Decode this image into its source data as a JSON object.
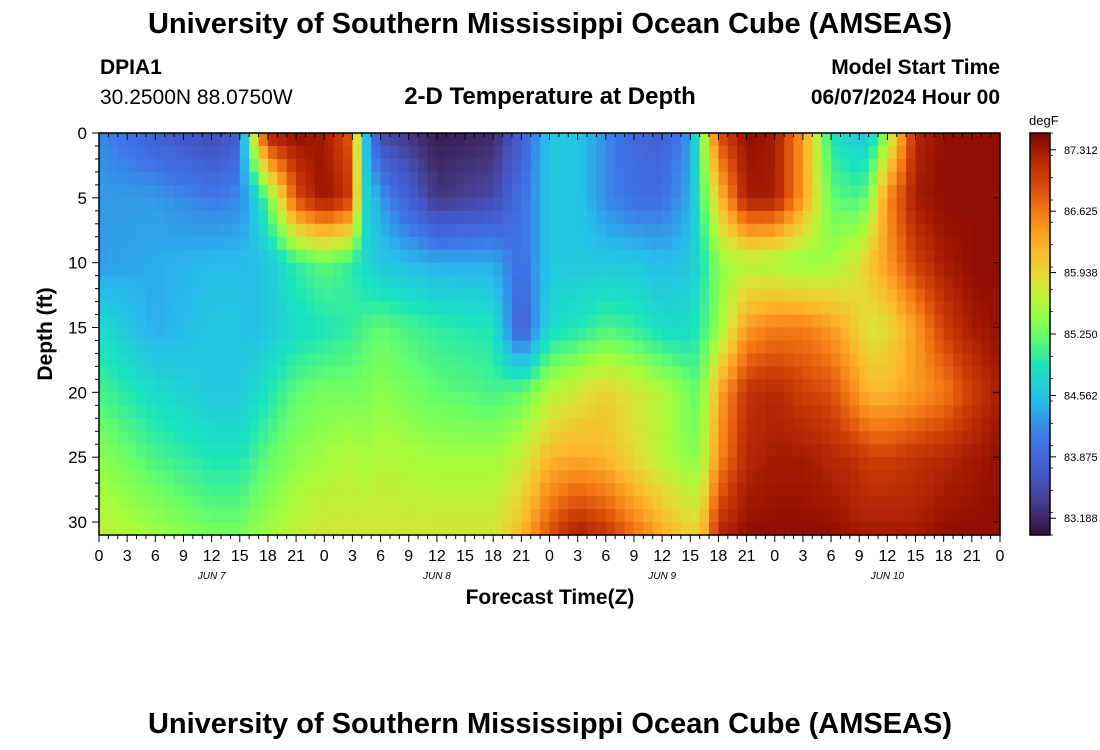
{
  "header": {
    "title": "University of Southern Mississippi Ocean Cube (AMSEAS)",
    "station_id": "DPIA1",
    "coordinates": "30.2500N  88.0750W",
    "subtitle": "2-D Temperature at Depth",
    "model_start_label": "Model Start Time",
    "model_start_value": "06/07/2024 Hour 00"
  },
  "footer": {
    "title": "University of Southern Mississippi Ocean Cube (AMSEAS)"
  },
  "chart_data": {
    "type": "heatmap",
    "title": "2-D Temperature at Depth",
    "xlabel": "Forecast Time(Z)",
    "ylabel": "Depth (ft)",
    "x_unit": "hours since model start (06/07/2024 00Z)",
    "x_range": [
      0,
      96
    ],
    "y_range": [
      0,
      31
    ],
    "y_inverted": true,
    "x_tick_labels": [
      "0",
      "3",
      "6",
      "9",
      "12",
      "15",
      "18",
      "21",
      "0",
      "3",
      "6",
      "9",
      "12",
      "15",
      "18",
      "21",
      "0",
      "3",
      "6",
      "9",
      "12",
      "15",
      "18",
      "21",
      "0",
      "3",
      "6",
      "9",
      "12",
      "15",
      "18",
      "21",
      "0"
    ],
    "day_labels": [
      {
        "label": "JUN 7",
        "hour": 12
      },
      {
        "label": "JUN 8",
        "hour": 36
      },
      {
        "label": "JUN 9",
        "hour": 60
      },
      {
        "label": "JUN 10",
        "hour": 84
      }
    ],
    "y_ticks": [
      0,
      5,
      10,
      15,
      20,
      25,
      30
    ],
    "colorbar": {
      "unit": "degF",
      "min": 83.0,
      "max": 87.5,
      "tick_values": [
        87.312,
        86.625,
        85.938,
        85.25,
        84.562,
        83.875,
        83.188
      ],
      "tick_labels": [
        "87.312",
        "86.625",
        "85.938",
        "85.250",
        "84.562",
        "83.875",
        "83.188"
      ]
    },
    "depths": [
      0,
      5,
      10,
      15,
      20,
      25,
      31
    ],
    "hours": [
      0,
      6,
      12,
      15,
      16,
      18,
      21,
      24,
      27,
      28,
      30,
      36,
      42,
      45,
      48,
      51,
      54,
      57,
      60,
      63,
      64,
      66,
      69,
      72,
      75,
      78,
      81,
      82,
      84,
      87,
      90,
      93,
      96
    ],
    "values": [
      [
        84.2,
        83.8,
        83.5,
        83.8,
        85.4,
        87.3,
        87.4,
        87.3,
        86.8,
        84.8,
        83.5,
        83.1,
        83.2,
        83.8,
        84.6,
        84.6,
        84.2,
        83.9,
        83.8,
        84.3,
        85.1,
        86.9,
        87.4,
        87.3,
        86.4,
        84.9,
        84.6,
        84.6,
        85.5,
        87.2,
        87.4,
        87.4,
        87.4
      ],
      [
        84.3,
        84.3,
        84.1,
        84.2,
        84.4,
        85.2,
        86.9,
        87.4,
        87.0,
        84.9,
        84.3,
        83.3,
        83.5,
        84.0,
        84.6,
        84.6,
        84.2,
        84.0,
        84.0,
        84.4,
        85.0,
        86.1,
        87.3,
        87.3,
        86.4,
        85.2,
        85.1,
        85.3,
        86.5,
        87.3,
        87.4,
        87.4,
        87.4
      ],
      [
        84.3,
        84.4,
        84.5,
        84.5,
        84.5,
        84.6,
        85.0,
        85.2,
        85.0,
        84.8,
        84.6,
        84.4,
        84.4,
        84.0,
        84.6,
        84.6,
        84.6,
        84.6,
        84.5,
        84.6,
        84.8,
        85.4,
        85.6,
        85.5,
        85.4,
        85.5,
        85.8,
        86.1,
        86.4,
        87.0,
        87.3,
        87.4,
        87.4
      ],
      [
        84.8,
        84.4,
        84.6,
        84.6,
        84.5,
        84.6,
        84.8,
        84.9,
        85.0,
        85.1,
        85.2,
        85.0,
        84.9,
        83.7,
        84.8,
        84.9,
        85.1,
        85.0,
        84.8,
        84.8,
        85.0,
        85.4,
        86.4,
        86.6,
        86.6,
        86.4,
        86.0,
        85.8,
        85.9,
        86.4,
        87.0,
        87.3,
        87.4
      ],
      [
        85.1,
        84.8,
        84.6,
        84.6,
        84.7,
        84.9,
        85.2,
        85.3,
        85.3,
        85.3,
        85.4,
        85.2,
        85.1,
        85.2,
        85.6,
        85.8,
        86.0,
        85.8,
        85.6,
        85.3,
        85.2,
        86.3,
        87.1,
        87.2,
        87.0,
        86.9,
        86.4,
        86.2,
        86.2,
        86.4,
        86.6,
        87.0,
        87.3
      ],
      [
        85.4,
        85.1,
        84.9,
        84.9,
        85.0,
        85.2,
        85.4,
        85.5,
        85.6,
        85.5,
        85.6,
        85.5,
        85.5,
        85.7,
        86.2,
        86.3,
        86.2,
        85.9,
        85.6,
        85.4,
        85.4,
        86.5,
        87.2,
        87.3,
        87.3,
        87.2,
        87.1,
        87.0,
        87.0,
        87.1,
        87.2,
        87.3,
        87.4
      ],
      [
        85.7,
        85.5,
        85.3,
        85.3,
        85.4,
        85.5,
        85.7,
        85.8,
        85.8,
        85.8,
        85.8,
        85.8,
        85.8,
        86.2,
        86.9,
        87.3,
        87.1,
        86.7,
        86.3,
        86.0,
        86.0,
        87.2,
        87.4,
        87.4,
        87.4,
        87.4,
        87.3,
        87.3,
        87.3,
        87.3,
        87.4,
        87.4,
        87.4
      ]
    ]
  }
}
